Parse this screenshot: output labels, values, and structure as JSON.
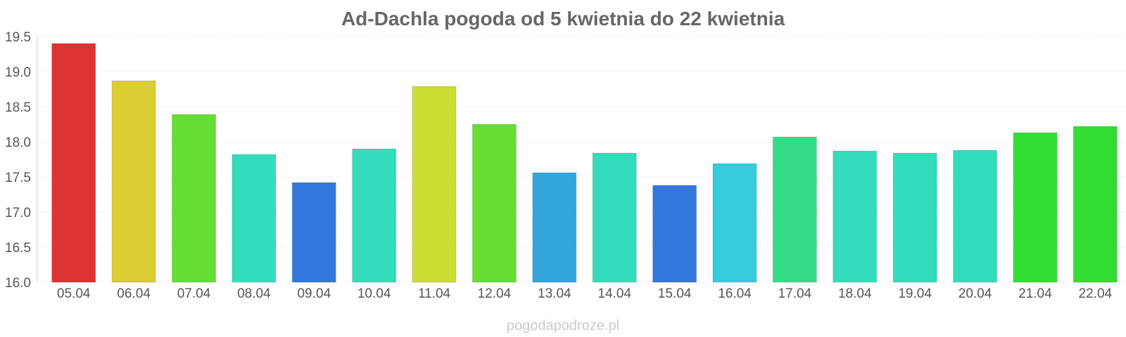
{
  "chart_data": {
    "type": "bar",
    "title": "Ad-Dachla pogoda od 5 kwietnia do 22 kwietnia",
    "xlabel": "",
    "ylabel": "",
    "categories": [
      "05.04",
      "06.04",
      "07.04",
      "08.04",
      "09.04",
      "10.04",
      "11.04",
      "12.04",
      "13.04",
      "14.04",
      "15.04",
      "16.04",
      "17.04",
      "18.04",
      "19.04",
      "20.04",
      "21.04",
      "22.04"
    ],
    "values": [
      19.4,
      18.87,
      18.39,
      17.82,
      17.42,
      17.9,
      18.79,
      18.25,
      17.56,
      17.84,
      17.38,
      17.69,
      18.07,
      17.87,
      17.84,
      17.88,
      18.13,
      18.22
    ],
    "colors": [
      "#dd3333",
      "#ddcc33",
      "#66dd33",
      "#33ddbb",
      "#3377dd",
      "#33ddbb",
      "#ccdd33",
      "#66dd33",
      "#33a5dd",
      "#33ddbb",
      "#3377dd",
      "#33cddd",
      "#33dd88",
      "#33ddbb",
      "#33ddbb",
      "#33ddbb",
      "#33dd33",
      "#33dd33"
    ],
    "ylim": [
      16.0,
      19.5
    ],
    "yticks": [
      "16.0",
      "16.5",
      "17.0",
      "17.5",
      "18.0",
      "18.5",
      "19.0",
      "19.5"
    ],
    "grid": true,
    "legend": "none"
  },
  "footer": {
    "watermark": "pogodapodroze.pl"
  }
}
